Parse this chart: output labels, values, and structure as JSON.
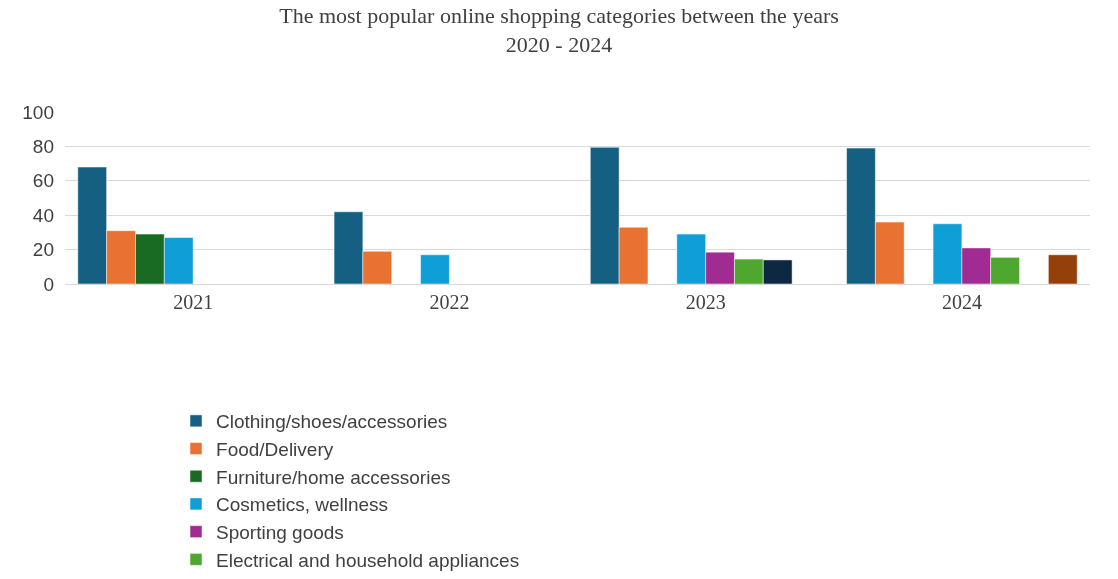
{
  "chart_data": {
    "type": "bar",
    "title": "The most popular online shopping categories between the years\n2020 - 2024",
    "categories": [
      "2021",
      "2022",
      "2023",
      "2024"
    ],
    "series": [
      {
        "name": "Clothing/shoes/accessories",
        "color": "#156082",
        "values": [
          68,
          42,
          79.5,
          79
        ]
      },
      {
        "name": "Food/Delivery",
        "color": "#e97132",
        "values": [
          31,
          19,
          33,
          36
        ]
      },
      {
        "name": "Furniture/home accessories",
        "color": "#196b24",
        "values": [
          29,
          null,
          null,
          null
        ]
      },
      {
        "name": "Cosmetics, wellness",
        "color": "#0f9ed5",
        "values": [
          27,
          17,
          29,
          35
        ]
      },
      {
        "name": "Sporting goods",
        "color": "#a02b93",
        "values": [
          null,
          null,
          18.5,
          21
        ]
      },
      {
        "name": "Electrical and household appliances",
        "color": "#4ea72e",
        "values": [
          null,
          null,
          14.5,
          15.5
        ]
      },
      {
        "color": "#0e2841",
        "values": [
          null,
          null,
          14,
          null
        ]
      },
      {
        "color": "#953f0b",
        "values": [
          null,
          null,
          null,
          17
        ]
      }
    ],
    "ylim": [
      0,
      100
    ],
    "yticks": [
      0,
      20,
      40,
      60,
      80,
      100
    ],
    "grid": "y",
    "legend": "bottom"
  }
}
